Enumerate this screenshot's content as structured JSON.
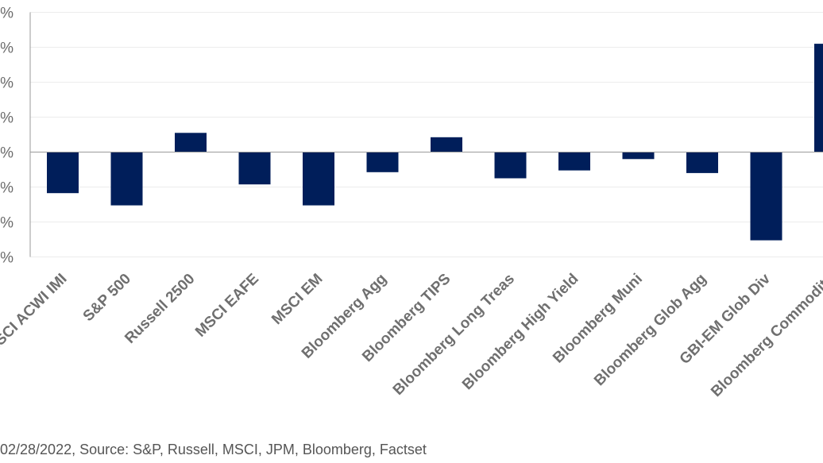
{
  "chart_data": {
    "type": "bar",
    "categories": [
      "MSCI ACWI IMI",
      "S&P 500",
      "Russell 2500",
      "MSCI EAFE",
      "MSCI EM",
      "Bloomberg Agg",
      "Bloomberg TIPS",
      "Bloomberg Long Treas",
      "Bloomberg High Yield",
      "Bloomberg Muni",
      "Bloomberg Glob Agg",
      "GBI-EM Glob Div",
      "Bloomberg Commodity"
    ],
    "values": [
      -2.35,
      -3.05,
      1.1,
      -1.85,
      -3.05,
      -1.15,
      0.85,
      -1.5,
      -1.05,
      -0.4,
      -1.2,
      -5.05,
      6.2
    ],
    "ytick_values": [
      8,
      6,
      4,
      2,
      0,
      -2,
      -4,
      -6
    ],
    "ytick_labels": [
      "%",
      "%",
      "%",
      "%",
      "%",
      "%",
      "%",
      "%"
    ],
    "ylim": [
      -6,
      8
    ],
    "grid": true,
    "bar_color": "#001e5a"
  },
  "footnote": "02/28/2022, Source: S&P, Russell, MSCI, JPM, Bloomberg, Factset"
}
